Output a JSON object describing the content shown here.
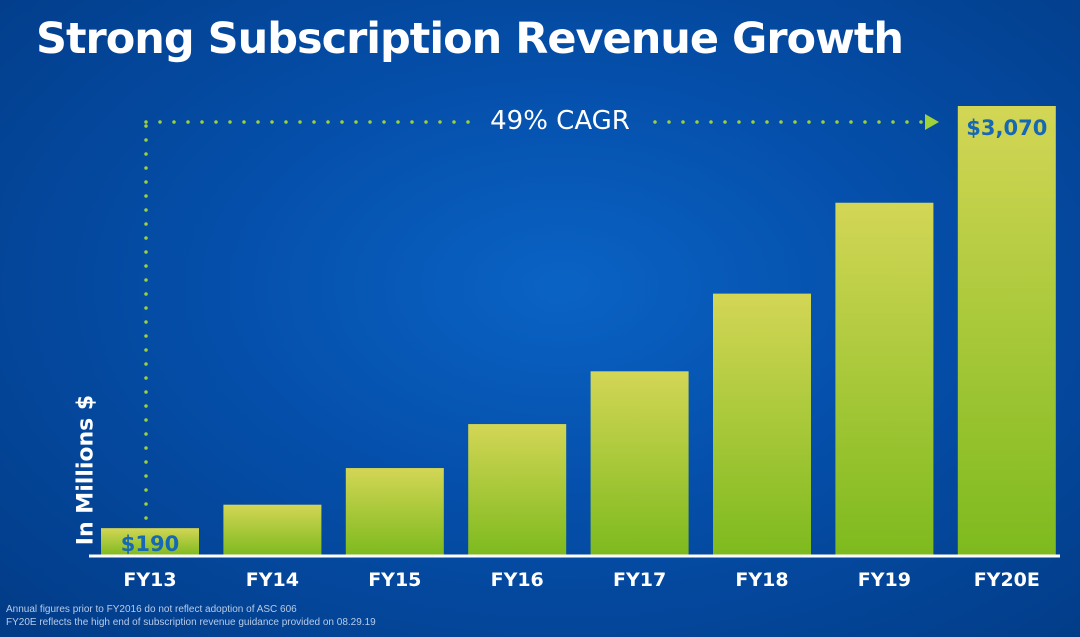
{
  "title": "Strong Subscription Revenue Growth",
  "annotation": "49% CAGR",
  "footnotes": [
    "Annual figures prior to FY2016 do not reflect adoption of ASC 606",
    "FY20E reflects the high end of subscription revenue guidance provided on 08.29.19"
  ],
  "colors": {
    "bar_top": "#d3d655",
    "bar_bottom": "#7dba1e",
    "dotted_line": "#9fd13a",
    "data_label": "#1668b4",
    "axis": "#ffffff"
  },
  "chart_data": {
    "type": "bar",
    "title": "Strong Subscription Revenue Growth",
    "xlabel": "",
    "ylabel": "In Millions $",
    "categories": [
      "FY13",
      "FY14",
      "FY15",
      "FY16",
      "FY17",
      "FY18",
      "FY19",
      "FY20E"
    ],
    "values": [
      190,
      350,
      600,
      900,
      1260,
      1790,
      2410,
      3070
    ],
    "data_labels": {
      "FY13": "$190",
      "FY20E": "$3,070"
    },
    "ylim": [
      0,
      3070
    ],
    "grid": false,
    "legend": "none"
  }
}
